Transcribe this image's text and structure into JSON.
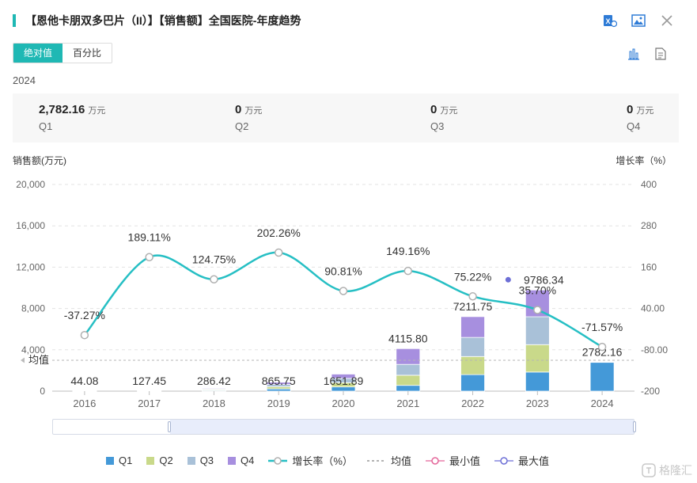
{
  "header": {
    "title": "【恩他卡朋双多巴片（II）】【销售额】全国医院-年度趋势",
    "accent_color": "#1fb8b4"
  },
  "toolbar": {
    "icons": [
      "excel-icon",
      "image-icon",
      "close-icon"
    ],
    "view_icons": [
      "bar-chart-icon",
      "document-icon"
    ]
  },
  "toggle": {
    "absolute_label": "绝对值",
    "percent_label": "百分比",
    "selected": "绝对值"
  },
  "summary": {
    "year": "2024",
    "unit": "万元",
    "quarters": [
      {
        "value": "2,782.16",
        "label": "Q1"
      },
      {
        "value": "0",
        "label": "Q2"
      },
      {
        "value": "0",
        "label": "Q3"
      },
      {
        "value": "0",
        "label": "Q4"
      }
    ]
  },
  "chart_data": {
    "type": "bar",
    "stacked": true,
    "categories": [
      "2016",
      "2017",
      "2018",
      "2019",
      "2020",
      "2021",
      "2022",
      "2023",
      "2024"
    ],
    "left_axis": {
      "label": "销售额(万元)",
      "ticks": [
        "20,000",
        "16,000",
        "12,000",
        "8,000",
        "4,000",
        "0"
      ],
      "range": [
        0,
        20000
      ]
    },
    "right_axis": {
      "label": "增长率（%）",
      "ticks": [
        "400",
        "280",
        "160",
        "40.00",
        "-80.00",
        "-200"
      ],
      "range": [
        -200,
        400
      ]
    },
    "series": [
      {
        "name": "Q1",
        "color": "#4499d8",
        "values": [
          11,
          32,
          72,
          216,
          410,
          560,
          1600,
          1850,
          2782.16
        ]
      },
      {
        "name": "Q2",
        "color": "#c9d98a",
        "values": [
          11,
          32,
          72,
          216,
          410,
          980,
          1750,
          2650,
          0
        ]
      },
      {
        "name": "Q3",
        "color": "#a9c1d8",
        "values": [
          11,
          32,
          71,
          216,
          415,
          1050,
          1850,
          2700,
          0
        ]
      },
      {
        "name": "Q4",
        "color": "#a78fdf",
        "values": [
          11.08,
          31.45,
          71.42,
          217.75,
          416.89,
          1525.8,
          2011.75,
          2586.34,
          0
        ]
      }
    ],
    "totals": [
      44.08,
      127.45,
      286.42,
      865.75,
      1651.89,
      4115.8,
      7211.75,
      9786.34,
      2782.16
    ],
    "total_labels": [
      "44.08",
      "127.45",
      "286.42",
      "865.75",
      "1651.89",
      "4115.80",
      "7211.75",
      "9786.34",
      "2782.16"
    ],
    "growth": {
      "name": "增长率（%）",
      "color": "#26bfc4",
      "values": [
        -37.27,
        189.11,
        124.75,
        202.26,
        90.81,
        149.16,
        75.22,
        35.7,
        -71.57
      ],
      "labels": [
        "-37.27%",
        "189.11%",
        "124.75%",
        "202.26%",
        "90.81%",
        "149.16%",
        "75.22%",
        "35.70%",
        "-71.57%"
      ]
    },
    "mean_label": "均值",
    "max_marker_index": 7,
    "legend": [
      {
        "name": "Q1",
        "kind": "square",
        "color": "#4499d8"
      },
      {
        "name": "Q2",
        "kind": "square",
        "color": "#c9d98a"
      },
      {
        "name": "Q3",
        "kind": "square",
        "color": "#a9c1d8"
      },
      {
        "name": "Q4",
        "kind": "square",
        "color": "#a78fdf"
      },
      {
        "name": "增长率（%）",
        "kind": "line",
        "color": "#26bfc4"
      },
      {
        "name": "均值",
        "kind": "dash",
        "color": "#999999"
      },
      {
        "name": "最小值",
        "kind": "ring",
        "color": "#e4669a"
      },
      {
        "name": "最大值",
        "kind": "ring",
        "color": "#6d6fd6"
      }
    ]
  },
  "watermark": "格隆汇"
}
